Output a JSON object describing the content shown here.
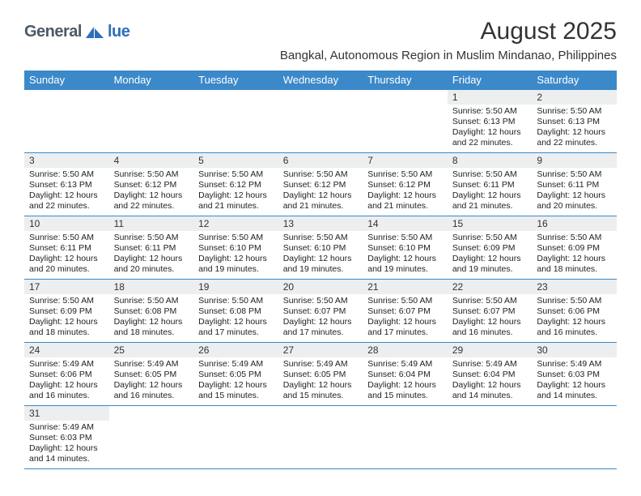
{
  "logo": {
    "text_a": "General",
    "text_b": "lue"
  },
  "title": "August 2025",
  "location": "Bangkal, Autonomous Region in Muslim Mindanao, Philippines",
  "colors": {
    "header_bg": "#3b89c9",
    "header_text": "#ffffff",
    "daynum_bg": "#eceeef",
    "border": "#3b89c9",
    "logo_gray": "#4b5a66",
    "logo_blue": "#2d6fb9"
  },
  "weekdays": [
    "Sunday",
    "Monday",
    "Tuesday",
    "Wednesday",
    "Thursday",
    "Friday",
    "Saturday"
  ],
  "weeks": [
    [
      {
        "day": "",
        "sunrise": "",
        "sunset": "",
        "daylight": ""
      },
      {
        "day": "",
        "sunrise": "",
        "sunset": "",
        "daylight": ""
      },
      {
        "day": "",
        "sunrise": "",
        "sunset": "",
        "daylight": ""
      },
      {
        "day": "",
        "sunrise": "",
        "sunset": "",
        "daylight": ""
      },
      {
        "day": "",
        "sunrise": "",
        "sunset": "",
        "daylight": ""
      },
      {
        "day": "1",
        "sunrise": "Sunrise: 5:50 AM",
        "sunset": "Sunset: 6:13 PM",
        "daylight": "Daylight: 12 hours and 22 minutes."
      },
      {
        "day": "2",
        "sunrise": "Sunrise: 5:50 AM",
        "sunset": "Sunset: 6:13 PM",
        "daylight": "Daylight: 12 hours and 22 minutes."
      }
    ],
    [
      {
        "day": "3",
        "sunrise": "Sunrise: 5:50 AM",
        "sunset": "Sunset: 6:13 PM",
        "daylight": "Daylight: 12 hours and 22 minutes."
      },
      {
        "day": "4",
        "sunrise": "Sunrise: 5:50 AM",
        "sunset": "Sunset: 6:12 PM",
        "daylight": "Daylight: 12 hours and 22 minutes."
      },
      {
        "day": "5",
        "sunrise": "Sunrise: 5:50 AM",
        "sunset": "Sunset: 6:12 PM",
        "daylight": "Daylight: 12 hours and 21 minutes."
      },
      {
        "day": "6",
        "sunrise": "Sunrise: 5:50 AM",
        "sunset": "Sunset: 6:12 PM",
        "daylight": "Daylight: 12 hours and 21 minutes."
      },
      {
        "day": "7",
        "sunrise": "Sunrise: 5:50 AM",
        "sunset": "Sunset: 6:12 PM",
        "daylight": "Daylight: 12 hours and 21 minutes."
      },
      {
        "day": "8",
        "sunrise": "Sunrise: 5:50 AM",
        "sunset": "Sunset: 6:11 PM",
        "daylight": "Daylight: 12 hours and 21 minutes."
      },
      {
        "day": "9",
        "sunrise": "Sunrise: 5:50 AM",
        "sunset": "Sunset: 6:11 PM",
        "daylight": "Daylight: 12 hours and 20 minutes."
      }
    ],
    [
      {
        "day": "10",
        "sunrise": "Sunrise: 5:50 AM",
        "sunset": "Sunset: 6:11 PM",
        "daylight": "Daylight: 12 hours and 20 minutes."
      },
      {
        "day": "11",
        "sunrise": "Sunrise: 5:50 AM",
        "sunset": "Sunset: 6:11 PM",
        "daylight": "Daylight: 12 hours and 20 minutes."
      },
      {
        "day": "12",
        "sunrise": "Sunrise: 5:50 AM",
        "sunset": "Sunset: 6:10 PM",
        "daylight": "Daylight: 12 hours and 19 minutes."
      },
      {
        "day": "13",
        "sunrise": "Sunrise: 5:50 AM",
        "sunset": "Sunset: 6:10 PM",
        "daylight": "Daylight: 12 hours and 19 minutes."
      },
      {
        "day": "14",
        "sunrise": "Sunrise: 5:50 AM",
        "sunset": "Sunset: 6:10 PM",
        "daylight": "Daylight: 12 hours and 19 minutes."
      },
      {
        "day": "15",
        "sunrise": "Sunrise: 5:50 AM",
        "sunset": "Sunset: 6:09 PM",
        "daylight": "Daylight: 12 hours and 19 minutes."
      },
      {
        "day": "16",
        "sunrise": "Sunrise: 5:50 AM",
        "sunset": "Sunset: 6:09 PM",
        "daylight": "Daylight: 12 hours and 18 minutes."
      }
    ],
    [
      {
        "day": "17",
        "sunrise": "Sunrise: 5:50 AM",
        "sunset": "Sunset: 6:09 PM",
        "daylight": "Daylight: 12 hours and 18 minutes."
      },
      {
        "day": "18",
        "sunrise": "Sunrise: 5:50 AM",
        "sunset": "Sunset: 6:08 PM",
        "daylight": "Daylight: 12 hours and 18 minutes."
      },
      {
        "day": "19",
        "sunrise": "Sunrise: 5:50 AM",
        "sunset": "Sunset: 6:08 PM",
        "daylight": "Daylight: 12 hours and 17 minutes."
      },
      {
        "day": "20",
        "sunrise": "Sunrise: 5:50 AM",
        "sunset": "Sunset: 6:07 PM",
        "daylight": "Daylight: 12 hours and 17 minutes."
      },
      {
        "day": "21",
        "sunrise": "Sunrise: 5:50 AM",
        "sunset": "Sunset: 6:07 PM",
        "daylight": "Daylight: 12 hours and 17 minutes."
      },
      {
        "day": "22",
        "sunrise": "Sunrise: 5:50 AM",
        "sunset": "Sunset: 6:07 PM",
        "daylight": "Daylight: 12 hours and 16 minutes."
      },
      {
        "day": "23",
        "sunrise": "Sunrise: 5:50 AM",
        "sunset": "Sunset: 6:06 PM",
        "daylight": "Daylight: 12 hours and 16 minutes."
      }
    ],
    [
      {
        "day": "24",
        "sunrise": "Sunrise: 5:49 AM",
        "sunset": "Sunset: 6:06 PM",
        "daylight": "Daylight: 12 hours and 16 minutes."
      },
      {
        "day": "25",
        "sunrise": "Sunrise: 5:49 AM",
        "sunset": "Sunset: 6:05 PM",
        "daylight": "Daylight: 12 hours and 16 minutes."
      },
      {
        "day": "26",
        "sunrise": "Sunrise: 5:49 AM",
        "sunset": "Sunset: 6:05 PM",
        "daylight": "Daylight: 12 hours and 15 minutes."
      },
      {
        "day": "27",
        "sunrise": "Sunrise: 5:49 AM",
        "sunset": "Sunset: 6:05 PM",
        "daylight": "Daylight: 12 hours and 15 minutes."
      },
      {
        "day": "28",
        "sunrise": "Sunrise: 5:49 AM",
        "sunset": "Sunset: 6:04 PM",
        "daylight": "Daylight: 12 hours and 15 minutes."
      },
      {
        "day": "29",
        "sunrise": "Sunrise: 5:49 AM",
        "sunset": "Sunset: 6:04 PM",
        "daylight": "Daylight: 12 hours and 14 minutes."
      },
      {
        "day": "30",
        "sunrise": "Sunrise: 5:49 AM",
        "sunset": "Sunset: 6:03 PM",
        "daylight": "Daylight: 12 hours and 14 minutes."
      }
    ],
    [
      {
        "day": "31",
        "sunrise": "Sunrise: 5:49 AM",
        "sunset": "Sunset: 6:03 PM",
        "daylight": "Daylight: 12 hours and 14 minutes."
      },
      {
        "day": "",
        "sunrise": "",
        "sunset": "",
        "daylight": ""
      },
      {
        "day": "",
        "sunrise": "",
        "sunset": "",
        "daylight": ""
      },
      {
        "day": "",
        "sunrise": "",
        "sunset": "",
        "daylight": ""
      },
      {
        "day": "",
        "sunrise": "",
        "sunset": "",
        "daylight": ""
      },
      {
        "day": "",
        "sunrise": "",
        "sunset": "",
        "daylight": ""
      },
      {
        "day": "",
        "sunrise": "",
        "sunset": "",
        "daylight": ""
      }
    ]
  ]
}
